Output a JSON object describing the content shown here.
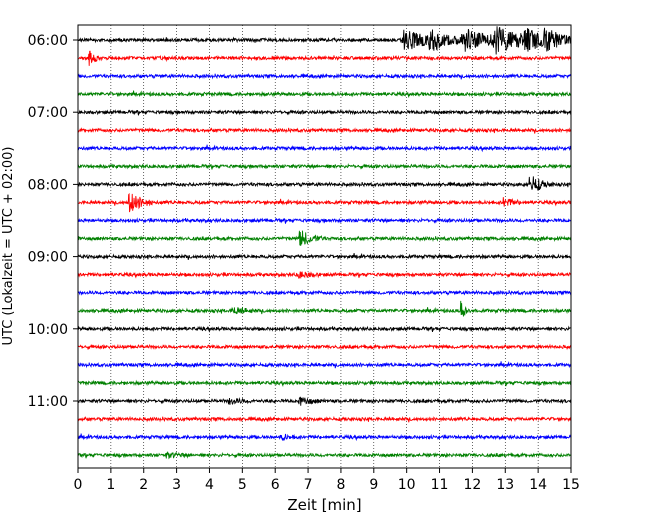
{
  "chart_data": {
    "type": "line",
    "title": "",
    "xlabel": "Zeit  [min]",
    "ylabel": "UTC (Lokalzeit = UTC + 02:00)",
    "xlim": [
      0,
      15
    ],
    "x_ticks": [
      "0",
      "1",
      "2",
      "3",
      "4",
      "5",
      "6",
      "7",
      "8",
      "9",
      "10",
      "11",
      "12",
      "13",
      "14",
      "15"
    ],
    "y_tick_labels": [
      "06:00",
      "07:00",
      "08:00",
      "09:00",
      "10:00",
      "11:00"
    ],
    "grid": "vertical dotted at each minute",
    "trace_colors": [
      "#000000",
      "#ff0000",
      "#0000ff",
      "#008000"
    ],
    "traces_per_hour": 4,
    "trace_interval_min": 15,
    "start_hour": "06:00",
    "trace_count": 24,
    "events": [
      {
        "trace": 0,
        "t": 9.9,
        "amp": 11,
        "dur": 0.7
      },
      {
        "trace": 0,
        "t": 10.7,
        "amp": 9,
        "dur": 0.5
      },
      {
        "trace": 0,
        "t": 11.7,
        "amp": 11,
        "dur": 0.8
      },
      {
        "trace": 0,
        "t": 12.6,
        "amp": 12,
        "dur": 0.8
      },
      {
        "trace": 0,
        "t": 13.6,
        "amp": 9,
        "dur": 0.6
      },
      {
        "trace": 0,
        "t": 14.2,
        "amp": 8,
        "dur": 0.5
      },
      {
        "trace": 1,
        "t": 0.35,
        "amp": 9,
        "dur": 0.12
      },
      {
        "trace": 8,
        "t": 13.75,
        "amp": 10,
        "dur": 0.3
      },
      {
        "trace": 9,
        "t": 1.55,
        "amp": 12,
        "dur": 0.3
      },
      {
        "trace": 9,
        "t": 12.95,
        "amp": 5,
        "dur": 0.25
      },
      {
        "trace": 11,
        "t": 6.75,
        "amp": 9,
        "dur": 0.3
      },
      {
        "trace": 13,
        "t": 6.7,
        "amp": 3,
        "dur": 0.3
      },
      {
        "trace": 15,
        "t": 4.7,
        "amp": 4,
        "dur": 0.3
      },
      {
        "trace": 15,
        "t": 11.65,
        "amp": 10,
        "dur": 0.12
      },
      {
        "trace": 20,
        "t": 4.6,
        "amp": 3,
        "dur": 0.3
      },
      {
        "trace": 20,
        "t": 6.75,
        "amp": 4,
        "dur": 0.3
      },
      {
        "trace": 22,
        "t": 6.2,
        "amp": 3,
        "dur": 0.2
      },
      {
        "trace": 23,
        "t": 2.7,
        "amp": 2.5,
        "dur": 0.3
      }
    ]
  }
}
